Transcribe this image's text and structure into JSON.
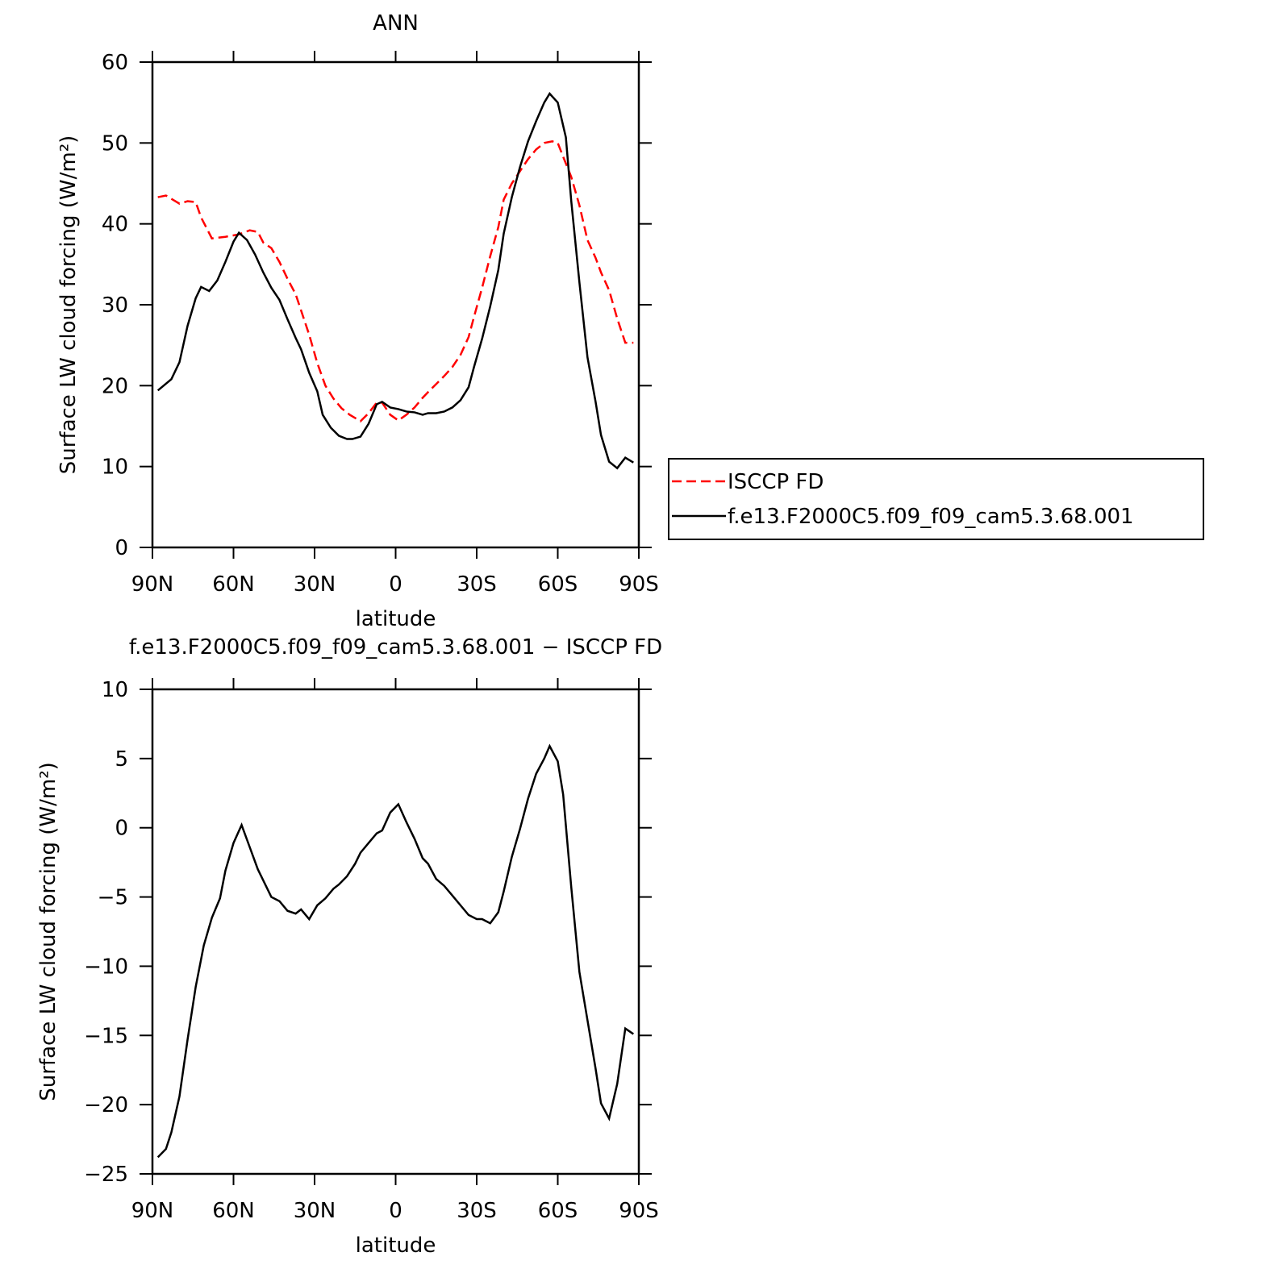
{
  "chart_data": [
    {
      "type": "line",
      "title": "ANN",
      "xlabel": "latitude",
      "ylabel": "Surface LW cloud forcing (W/m²)",
      "xlim": [
        90,
        -90
      ],
      "xticks": [
        {
          "value": 90,
          "label": "90N"
        },
        {
          "value": 60,
          "label": "60N"
        },
        {
          "value": 30,
          "label": "30N"
        },
        0,
        {
          "value": -30,
          "label": "30S"
        },
        {
          "value": -60,
          "label": "60S"
        },
        {
          "value": -90,
          "label": "90S"
        }
      ],
      "ylim": [
        0,
        60
      ],
      "yticks": [
        0,
        10,
        20,
        30,
        40,
        50,
        60
      ],
      "legend": "right",
      "series": [
        {
          "name": "ISCCP FD",
          "color": "#ff0000",
          "line_style": "dashed",
          "x": [
            88,
            85,
            80,
            77,
            74,
            72,
            68,
            63,
            58,
            54,
            51,
            49,
            46,
            43,
            40,
            37,
            35,
            32,
            29,
            26,
            23,
            20,
            17,
            13,
            10,
            7,
            5,
            2,
            -1,
            -4,
            -7,
            -10,
            -12,
            -15,
            -18,
            -21,
            -24,
            -27,
            -29,
            -32,
            -35,
            -38,
            -40,
            -43,
            -46,
            -49,
            -52,
            -55,
            -58,
            -60,
            -62,
            -65,
            -68,
            -71,
            -74,
            -76,
            -79,
            -82,
            -85,
            -88
          ],
          "values": [
            43.3,
            43.5,
            42.5,
            42.8,
            42.7,
            40.8,
            38.2,
            38.4,
            38.7,
            39.2,
            39.0,
            37.7,
            37.0,
            35.3,
            33.2,
            31.3,
            29.3,
            26.3,
            22.8,
            20.0,
            18.4,
            17.2,
            16.4,
            15.6,
            16.6,
            17.9,
            17.9,
            16.4,
            15.7,
            16.4,
            17.3,
            18.5,
            19.2,
            20.2,
            21.2,
            22.3,
            23.8,
            26.0,
            28.5,
            32.1,
            36.0,
            39.6,
            43.0,
            45.0,
            46.5,
            48.0,
            49.2,
            50.0,
            50.2,
            50.0,
            48.3,
            45.8,
            42.3,
            38.0,
            35.8,
            34.0,
            31.8,
            28.3,
            25.3,
            25.3
          ]
        },
        {
          "name": "f.e13.F2000C5.f09_f09_cam5.3.68.001",
          "color": "#000000",
          "line_style": "solid",
          "x": [
            88,
            83,
            80,
            77,
            74,
            72,
            69,
            66,
            63,
            60,
            58,
            55,
            52,
            49,
            46,
            43,
            40,
            37,
            35,
            32,
            29,
            27,
            24,
            21,
            18,
            16,
            13,
            10,
            7,
            5,
            2,
            -1,
            -4,
            -7,
            -10,
            -12,
            -15,
            -18,
            -21,
            -24,
            -27,
            -29,
            -32,
            -35,
            -38,
            -40,
            -43,
            -46,
            -49,
            -52,
            -55,
            -57,
            -60,
            -63,
            -65,
            -68,
            -71,
            -74,
            -76,
            -79,
            -82,
            -85,
            -88
          ],
          "values": [
            19.4,
            20.8,
            22.9,
            27.4,
            30.8,
            32.2,
            31.7,
            33.0,
            35.3,
            37.8,
            38.9,
            38.0,
            36.2,
            34.0,
            32.1,
            30.6,
            28.2,
            25.9,
            24.5,
            21.6,
            19.3,
            16.4,
            14.8,
            13.8,
            13.4,
            13.4,
            13.7,
            15.3,
            17.7,
            18.0,
            17.3,
            17.1,
            16.8,
            16.7,
            16.4,
            16.6,
            16.6,
            16.8,
            17.3,
            18.2,
            19.8,
            22.3,
            25.8,
            29.8,
            34.3,
            38.8,
            43.3,
            47.0,
            50.2,
            52.7,
            55.0,
            56.1,
            55.0,
            50.7,
            42.8,
            32.8,
            23.5,
            18.0,
            13.9,
            10.6,
            9.8,
            11.1,
            10.5
          ]
        }
      ]
    },
    {
      "type": "line",
      "title": "f.e13.F2000C5.f09_f09_cam5.3.68.001 − ISCCP FD",
      "xlabel": "latitude",
      "ylabel": "Surface LW cloud forcing (W/m²)",
      "xlim": [
        90,
        -90
      ],
      "xticks": [
        {
          "value": 90,
          "label": "90N"
        },
        {
          "value": 60,
          "label": "60N"
        },
        {
          "value": 30,
          "label": "30N"
        },
        0,
        {
          "value": -30,
          "label": "30S"
        },
        {
          "value": -60,
          "label": "60S"
        },
        {
          "value": -90,
          "label": "90S"
        }
      ],
      "ylim": [
        -25,
        10
      ],
      "yticks": [
        {
          "value": -25,
          "label": "−25"
        },
        {
          "value": -20,
          "label": "−20"
        },
        {
          "value": -15,
          "label": "−15"
        },
        {
          "value": -10,
          "label": "−10"
        },
        {
          "value": -5,
          "label": "−5"
        },
        0,
        5,
        10
      ],
      "series": [
        {
          "color": "#000000",
          "line_style": "solid",
          "x": [
            88,
            85,
            83,
            80,
            77,
            74,
            71,
            68,
            65,
            63,
            60,
            57,
            54,
            51,
            49,
            46,
            43,
            40,
            37,
            35,
            32,
            29,
            26,
            23,
            21,
            18,
            15,
            13,
            10,
            7,
            5,
            2,
            -1,
            -4,
            -7,
            -10,
            -12,
            -15,
            -18,
            -21,
            -24,
            -27,
            -30,
            -32,
            -35,
            -38,
            -40,
            -43,
            -46,
            -49,
            -52,
            -55,
            -57,
            -60,
            -62,
            -65,
            -68,
            -71,
            -74,
            -76,
            -79,
            -82,
            -85,
            -88
          ],
          "values": [
            -23.8,
            -23.2,
            -22.0,
            -19.4,
            -15.3,
            -11.5,
            -8.5,
            -6.5,
            -5.1,
            -3.1,
            -1.1,
            0.2,
            -1.4,
            -3.0,
            -3.8,
            -5.0,
            -5.3,
            -6.0,
            -6.2,
            -5.9,
            -6.6,
            -5.6,
            -5.1,
            -4.4,
            -4.1,
            -3.5,
            -2.6,
            -1.8,
            -1.1,
            -0.4,
            -0.2,
            1.1,
            1.7,
            0.4,
            -0.8,
            -2.2,
            -2.6,
            -3.7,
            -4.2,
            -4.9,
            -5.6,
            -6.3,
            -6.6,
            -6.6,
            -6.9,
            -6.1,
            -4.6,
            -2.1,
            -0.1,
            2.1,
            3.9,
            5.0,
            5.9,
            4.8,
            2.4,
            -4.3,
            -10.4,
            -13.9,
            -17.4,
            -19.9,
            -21.0,
            -18.5,
            -14.5,
            -14.9
          ]
        }
      ]
    }
  ]
}
